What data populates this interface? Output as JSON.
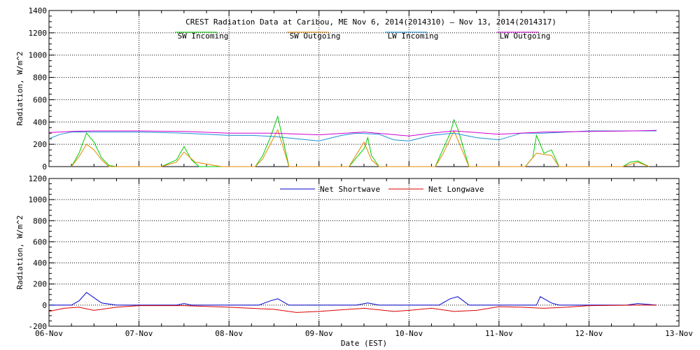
{
  "chart_data": [
    {
      "type": "line",
      "title": "CREST Radiation Data at Caribou, ME   Nov  6, 2014(2014310) – Nov 13, 2014(2014317)",
      "xlabel": "",
      "ylabel": "Radiation, W/m^2",
      "ylim": [
        0,
        1400
      ],
      "yticks": [
        0,
        200,
        400,
        600,
        800,
        1000,
        1200,
        1400
      ],
      "xlim": [
        "2014-11-06",
        "2014-11-13"
      ],
      "grid": true,
      "legend_position": "top-center",
      "series": [
        {
          "name": "SW Incoming",
          "color": "#00cc00",
          "x": [
            "2014-11-06 06:00",
            "2014-11-06 08:00",
            "2014-11-06 10:00",
            "2014-11-06 12:00",
            "2014-11-06 14:00",
            "2014-11-06 16:00",
            "2014-11-06 18:00",
            "2014-11-07 06:00",
            "2014-11-07 10:00",
            "2014-11-07 12:00",
            "2014-11-07 14:00",
            "2014-11-07 16:00",
            "2014-11-08 07:00",
            "2014-11-08 09:00",
            "2014-11-08 11:00",
            "2014-11-08 13:00",
            "2014-11-08 14:00",
            "2014-11-08 16:00",
            "2014-11-09 08:00",
            "2014-11-09 10:00",
            "2014-11-09 12:00",
            "2014-11-09 13:00",
            "2014-11-09 14:00",
            "2014-11-09 16:00",
            "2014-11-10 07:00",
            "2014-11-10 09:00",
            "2014-11-10 11:00",
            "2014-11-10 12:00",
            "2014-11-10 13:00",
            "2014-11-10 16:00",
            "2014-11-11 07:00",
            "2014-11-11 09:00",
            "2014-11-11 10:00",
            "2014-11-11 12:00",
            "2014-11-11 14:00",
            "2014-11-11 16:00",
            "2014-11-12 09:00",
            "2014-11-12 11:00",
            "2014-11-12 13:00",
            "2014-11-12 16:00"
          ],
          "values": [
            0,
            120,
            300,
            220,
            80,
            10,
            0,
            0,
            60,
            180,
            60,
            0,
            0,
            100,
            260,
            450,
            300,
            0,
            0,
            80,
            160,
            260,
            100,
            0,
            0,
            150,
            300,
            420,
            340,
            0,
            0,
            80,
            280,
            120,
            150,
            0,
            0,
            40,
            50,
            0
          ]
        },
        {
          "name": "SW Outgoing",
          "color": "#e08a00",
          "x": [
            "2014-11-06 06:00",
            "2014-11-06 08:00",
            "2014-11-06 10:00",
            "2014-11-06 12:00",
            "2014-11-06 14:00",
            "2014-11-06 16:00",
            "2014-11-07 06:00",
            "2014-11-07 10:00",
            "2014-11-07 12:00",
            "2014-11-07 15:00",
            "2014-11-07 22:00",
            "2014-11-08 07:00",
            "2014-11-08 09:00",
            "2014-11-08 11:00",
            "2014-11-08 13:00",
            "2014-11-08 16:00",
            "2014-11-09 08:00",
            "2014-11-09 12:00",
            "2014-11-09 14:00",
            "2014-11-09 16:00",
            "2014-11-10 07:00",
            "2014-11-10 09:00",
            "2014-11-10 12:00",
            "2014-11-10 16:00",
            "2014-11-11 07:00",
            "2014-11-11 10:00",
            "2014-11-11 14:00",
            "2014-11-11 16:00",
            "2014-11-12 09:00",
            "2014-11-12 13:00",
            "2014-11-12 16:00"
          ],
          "values": [
            0,
            90,
            200,
            150,
            60,
            0,
            0,
            40,
            130,
            40,
            0,
            0,
            70,
            200,
            330,
            0,
            0,
            220,
            60,
            0,
            0,
            110,
            320,
            0,
            0,
            120,
            100,
            0,
            0,
            40,
            0
          ]
        },
        {
          "name": "LW Incoming",
          "color": "#1a8fd6",
          "x": [
            "2014-11-06 00:00",
            "2014-11-06 03:00",
            "2014-11-06 06:00",
            "2014-11-06 12:00",
            "2014-11-07 00:00",
            "2014-11-07 12:00",
            "2014-11-08 00:00",
            "2014-11-08 06:00",
            "2014-11-08 12:00",
            "2014-11-08 18:00",
            "2014-11-09 00:00",
            "2014-11-09 06:00",
            "2014-11-09 10:00",
            "2014-11-09 16:00",
            "2014-11-09 20:00",
            "2014-11-10 00:00",
            "2014-11-10 06:00",
            "2014-11-10 12:00",
            "2014-11-10 18:00",
            "2014-11-11 00:00",
            "2014-11-11 06:00",
            "2014-11-11 12:00",
            "2014-11-11 18:00",
            "2014-11-12 00:00",
            "2014-11-12 12:00",
            "2014-11-12 18:00"
          ],
          "values": [
            250,
            290,
            310,
            310,
            310,
            300,
            280,
            280,
            270,
            250,
            230,
            280,
            300,
            290,
            240,
            230,
            280,
            300,
            260,
            240,
            300,
            300,
            310,
            320,
            320,
            320
          ]
        },
        {
          "name": "LW Outgoing",
          "color": "#d000d0",
          "x": [
            "2014-11-06 00:00",
            "2014-11-06 06:00",
            "2014-11-06 12:00",
            "2014-11-07 00:00",
            "2014-11-07 12:00",
            "2014-11-08 00:00",
            "2014-11-08 12:00",
            "2014-11-09 00:00",
            "2014-11-09 12:00",
            "2014-11-10 00:00",
            "2014-11-10 06:00",
            "2014-11-10 12:00",
            "2014-11-11 00:00",
            "2014-11-11 12:00",
            "2014-11-12 00:00",
            "2014-11-12 12:00",
            "2014-11-12 18:00"
          ],
          "values": [
            305,
            315,
            320,
            320,
            315,
            300,
            300,
            285,
            310,
            275,
            300,
            320,
            290,
            310,
            315,
            320,
            325
          ]
        }
      ]
    },
    {
      "type": "line",
      "title": "",
      "xlabel": "Date (EST)",
      "ylabel": "Radiation, W/m^2",
      "ylim": [
        -200,
        1200
      ],
      "yticks": [
        -200,
        0,
        200,
        400,
        600,
        800,
        1000,
        1200
      ],
      "xlim": [
        "2014-11-06",
        "2014-11-13"
      ],
      "xtick_labels": [
        "06-Nov",
        "07-Nov",
        "08-Nov",
        "09-Nov",
        "10-Nov",
        "11-Nov",
        "12-Nov",
        "13-Nov"
      ],
      "grid": true,
      "legend_position": "top-center",
      "series": [
        {
          "name": "Net Shortwave",
          "color": "#0000cc",
          "x": [
            "2014-11-06 00:00",
            "2014-11-06 06:00",
            "2014-11-06 08:00",
            "2014-11-06 10:00",
            "2014-11-06 12:00",
            "2014-11-06 14:00",
            "2014-11-06 18:00",
            "2014-11-07 10:00",
            "2014-11-07 12:00",
            "2014-11-07 14:00",
            "2014-11-08 08:00",
            "2014-11-08 11:00",
            "2014-11-08 13:00",
            "2014-11-08 16:00",
            "2014-11-09 10:00",
            "2014-11-09 13:00",
            "2014-11-09 16:00",
            "2014-11-10 08:00",
            "2014-11-10 11:00",
            "2014-11-10 13:00",
            "2014-11-10 16:00",
            "2014-11-11 10:00",
            "2014-11-11 11:00",
            "2014-11-11 14:00",
            "2014-11-11 16:00",
            "2014-11-12 10:00",
            "2014-11-12 13:00",
            "2014-11-12 18:00"
          ],
          "values": [
            0,
            0,
            40,
            120,
            70,
            20,
            0,
            0,
            15,
            0,
            0,
            40,
            60,
            0,
            0,
            20,
            0,
            0,
            60,
            80,
            0,
            0,
            80,
            20,
            0,
            0,
            15,
            0
          ]
        },
        {
          "name": "Net Longwave",
          "color": "#dd0000",
          "x": [
            "2014-11-06 00:00",
            "2014-11-06 04:00",
            "2014-11-06 08:00",
            "2014-11-06 12:00",
            "2014-11-06 18:00",
            "2014-11-07 00:00",
            "2014-11-07 12:00",
            "2014-11-08 00:00",
            "2014-11-08 12:00",
            "2014-11-08 18:00",
            "2014-11-09 00:00",
            "2014-11-09 12:00",
            "2014-11-09 20:00",
            "2014-11-10 00:00",
            "2014-11-10 06:00",
            "2014-11-10 12:00",
            "2014-11-10 18:00",
            "2014-11-11 00:00",
            "2014-11-11 06:00",
            "2014-11-11 12:00",
            "2014-11-11 18:00",
            "2014-11-12 00:00",
            "2014-11-12 12:00",
            "2014-11-12 18:00"
          ],
          "values": [
            -60,
            -30,
            -20,
            -50,
            -20,
            -5,
            -5,
            -20,
            -40,
            -70,
            -60,
            -30,
            -60,
            -50,
            -30,
            -60,
            -50,
            -15,
            -20,
            -30,
            -20,
            -5,
            0,
            0
          ]
        }
      ]
    }
  ]
}
